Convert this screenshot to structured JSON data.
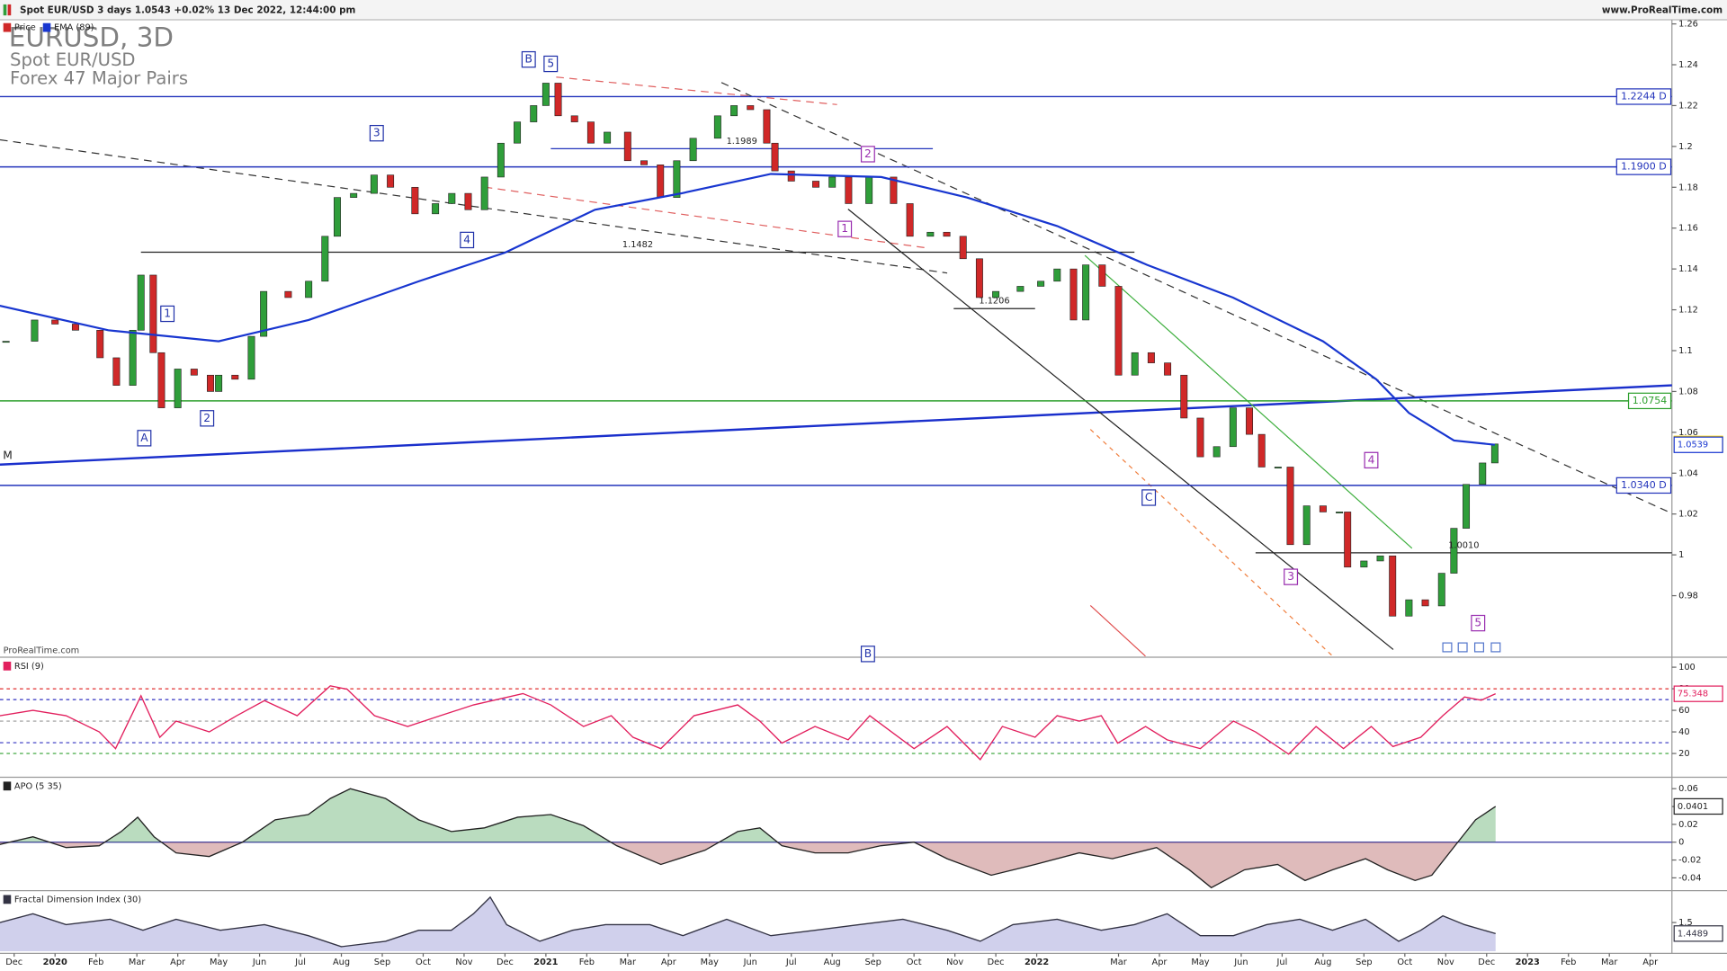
{
  "chart_data": [
    {
      "type": "candlestick",
      "header": "Spot EUR/USD 3 days 1.0543 +0.02% 13 Dec 2022, 12:44:00 pm",
      "site": "www.ProRealTime.com",
      "title": "EURUSD, 3D",
      "subtitle": "Spot EUR/USD",
      "market": "Forex 47 Major Pairs",
      "watermark": "ProRealTime.com",
      "xlim": [
        -1.346,
        39.53
      ],
      "ylim": [
        0.9504,
        1.262
      ],
      "yticks": [
        0.98,
        1,
        1.02,
        1.04,
        1.06,
        1.08,
        1.1,
        1.12,
        1.14,
        1.16,
        1.18,
        1.2,
        1.22,
        1.24,
        1.26
      ],
      "series": [
        {
          "name": "Price",
          "type": "candlestick",
          "up_color": "#2f9e3a",
          "down_color": "#d02828",
          "color": "#d02828",
          "label_fill": "#ffd400",
          "last_label": "1.0543",
          "x": [
            -1.2,
            -0.5,
            0,
            0.5,
            1.1,
            1.5,
            1.9,
            2.1,
            2.4,
            2.6,
            3.0,
            3.4,
            3.8,
            4.0,
            4.4,
            4.8,
            5.1,
            5.7,
            6.2,
            6.6,
            6.9,
            7.3,
            7.8,
            8.2,
            8.8,
            9.3,
            9.7,
            10.1,
            10.5,
            10.9,
            11.3,
            11.7,
            12.0,
            12.3,
            12.7,
            13.1,
            13.5,
            14.0,
            14.4,
            14.8,
            15.2,
            15.6,
            16.2,
            16.6,
            17.0,
            17.4,
            17.6,
            18.0,
            18.6,
            19.0,
            19.4,
            19.9,
            20.5,
            20.9,
            21.4,
            21.8,
            22.2,
            22.6,
            23.0,
            23.6,
            24.1,
            24.5,
            24.9,
            25.2,
            25.6,
            26.0,
            26.4,
            26.8,
            27.2,
            27.6,
            28.0,
            28.4,
            28.8,
            29.2,
            29.5,
            29.9,
            30.2,
            30.6,
            31.0,
            31.4,
            31.6,
            32.0,
            32.4,
            32.7,
            33.1,
            33.5,
            33.9,
            34.2,
            34.5,
            34.9,
            35.2
          ],
          "values": [
            1.1046,
            1.115,
            1.113,
            1.11,
            1.0965,
            1.083,
            1.11,
            1.137,
            1.099,
            1.072,
            1.091,
            1.088,
            1.08,
            1.088,
            1.086,
            1.107,
            1.129,
            1.126,
            1.134,
            1.156,
            1.175,
            1.177,
            1.186,
            1.18,
            1.167,
            1.172,
            1.177,
            1.169,
            1.185,
            1.2016,
            1.212,
            1.22,
            1.231,
            1.215,
            1.212,
            1.2016,
            1.207,
            1.193,
            1.191,
            1.175,
            1.193,
            1.204,
            1.215,
            1.22,
            1.218,
            1.2016,
            1.188,
            1.183,
            1.18,
            1.185,
            1.172,
            1.185,
            1.172,
            1.156,
            1.158,
            1.156,
            1.145,
            1.126,
            1.129,
            1.1315,
            1.134,
            1.14,
            1.115,
            1.142,
            1.1315,
            1.088,
            1.099,
            1.094,
            1.088,
            1.067,
            1.048,
            1.053,
            1.072,
            1.059,
            1.043,
            1.043,
            1.005,
            1.024,
            1.021,
            1.021,
            0.994,
            0.997,
            0.9995,
            0.97,
            0.978,
            0.975,
            0.991,
            1.013,
            1.0345,
            1.045,
            1.0543
          ]
        },
        {
          "name": "EMA (89)",
          "type": "line",
          "color": "#1836d0",
          "last_label": "1.0539",
          "x": [
            -1.35,
            1.3,
            4.0,
            6.2,
            8.9,
            11.0,
            13.2,
            15.3,
            17.5,
            20.2,
            22.3,
            24.5,
            26.7,
            28.8,
            31.0,
            32.3,
            33.1,
            34.2,
            35.2
          ],
          "values": [
            1.122,
            1.11,
            1.1046,
            1.115,
            1.134,
            1.148,
            1.169,
            1.177,
            1.1865,
            1.185,
            1.175,
            1.161,
            1.142,
            1.126,
            1.1046,
            1.086,
            1.0695,
            1.056,
            1.0539
          ]
        }
      ],
      "levels": [
        {
          "value": 1.2244,
          "label": "1.2244 D",
          "color": "#2233bb"
        },
        {
          "value": 1.19,
          "label": "1.1900 D",
          "color": "#2233bb"
        },
        {
          "value": 1.0754,
          "label": "1.0754",
          "color": "#2ea02e"
        },
        {
          "value": 1.034,
          "label": "1.0340 D",
          "color": "#2233bb"
        }
      ],
      "segments": [
        {
          "value": 1.1482,
          "label": "1.1482",
          "x": [
            2.1,
            26.39
          ],
          "color": "#222222"
        },
        {
          "value": 1.1989,
          "label": "1.1989",
          "x": [
            12.12,
            21.46
          ],
          "color": "#2233bb"
        },
        {
          "value": 1.1206,
          "label": "1.1206",
          "x": [
            21.97,
            23.96
          ],
          "color": "#222222"
        },
        {
          "value": 1.001,
          "label": "1.0010",
          "x": [
            29.35,
            39.53
          ],
          "color": "#222222"
        }
      ],
      "annotations": [
        {
          "text": "A",
          "color": "#2233aa"
        },
        {
          "text": "1",
          "color": "#2233aa"
        },
        {
          "text": "2",
          "color": "#2233aa"
        },
        {
          "text": "3",
          "color": "#2233aa"
        },
        {
          "text": "4",
          "color": "#2233aa"
        },
        {
          "text": "B",
          "color": "#2233aa"
        },
        {
          "text": "5",
          "color": "#2233aa"
        },
        {
          "text": "C",
          "color": "#2233aa"
        },
        {
          "text": "1",
          "color": "#9a2fb0"
        },
        {
          "text": "2",
          "color": "#9a2fb0"
        },
        {
          "text": "3",
          "color": "#9a2fb0"
        },
        {
          "text": "4",
          "color": "#9a2fb0"
        },
        {
          "text": "5",
          "color": "#9a2fb0"
        },
        {
          "text": "B",
          "color": "#2233aa"
        },
        {
          "text": "M",
          "color": "#222222"
        }
      ]
    },
    {
      "type": "line",
      "xlim": [
        -1.346,
        39.53
      ],
      "ylim": [
        -1,
        108.2
      ],
      "yticks": [
        20,
        40,
        60,
        80,
        100
      ],
      "ref_lines": [
        {
          "value": 80,
          "color": "#e03030",
          "dash": true
        },
        {
          "value": 70,
          "color": "#3030c0",
          "dash": true
        },
        {
          "value": 50,
          "color": "#999999",
          "dash": true
        },
        {
          "value": 30,
          "color": "#3030c0",
          "dash": true
        },
        {
          "value": 20,
          "color": "#30a030",
          "dash": true
        }
      ],
      "series": [
        {
          "name": "RSI (9)",
          "type": "line",
          "color": "#e2205e",
          "last_label": "75.348",
          "x": [
            -1.35,
            -0.54,
            0.27,
            1.08,
            1.48,
            2.1,
            2.56,
            2.96,
            3.77,
            4.44,
            5.12,
            5.92,
            6.73,
            7.14,
            7.81,
            8.62,
            9.42,
            10.23,
            11.44,
            12.12,
            12.92,
            13.6,
            14.13,
            14.81,
            15.62,
            16.69,
            17.23,
            17.77,
            18.58,
            19.39,
            19.92,
            21.0,
            21.81,
            22.62,
            23.16,
            23.96,
            24.5,
            25.04,
            25.58,
            25.98,
            26.66,
            27.19,
            28.0,
            28.81,
            29.35,
            30.16,
            30.83,
            31.5,
            32.18,
            32.71,
            33.39,
            33.93,
            34.46,
            34.87,
            35.22
          ],
          "values": [
            55,
            60,
            55,
            40,
            24.5,
            73.5,
            35,
            50,
            40,
            55,
            69,
            55,
            82.7,
            79.6,
            55,
            45,
            55,
            65,
            75.5,
            65,
            45,
            55,
            35,
            24.5,
            55,
            65,
            50,
            29.6,
            45,
            32.7,
            55,
            24.5,
            45,
            14.3,
            45,
            35,
            55,
            50,
            55,
            29.6,
            45,
            32.7,
            24.5,
            50,
            40,
            19.4,
            45,
            24.5,
            45,
            26.5,
            35,
            55,
            72.4,
            69.4,
            75.348
          ]
        }
      ]
    },
    {
      "type": "area",
      "xlim": [
        -1.346,
        39.53
      ],
      "ylim": [
        -0.0531,
        0.0716
      ],
      "yticks": [
        -0.04,
        -0.02,
        0,
        0.02,
        0.04,
        0.06
      ],
      "ref_lines": [
        {
          "value": 0,
          "color": "#3030a0",
          "dash": false
        }
      ],
      "series": [
        {
          "name": "APO (5 35)",
          "type": "area",
          "color": "#222222",
          "fill_colors": [
            "#3a9a48",
            "#a23c3c"
          ],
          "last_label": "0.0401",
          "x": [
            -1.35,
            -0.54,
            0.27,
            1.08,
            1.62,
            2.02,
            2.42,
            2.96,
            3.77,
            4.58,
            5.38,
            6.19,
            6.73,
            7.22,
            8.08,
            8.89,
            9.69,
            10.5,
            11.31,
            12.12,
            12.92,
            13.73,
            14.81,
            15.89,
            16.69,
            17.23,
            17.77,
            18.58,
            19.39,
            20.19,
            21.0,
            21.81,
            22.89,
            23.96,
            25.04,
            25.85,
            26.93,
            27.73,
            28.27,
            29.08,
            29.89,
            30.56,
            31.23,
            32.04,
            32.58,
            33.25,
            33.66,
            34.19,
            34.73,
            35.22
          ],
          "values": [
            -0.0025,
            0.006,
            -0.006,
            -0.004,
            0.012,
            0.028,
            0.006,
            -0.012,
            -0.016,
            0,
            0.025,
            0.031,
            0.049,
            0.06,
            0.049,
            0.025,
            0.012,
            0.016,
            0.028,
            0.031,
            0.0185,
            -0.004,
            -0.025,
            -0.009,
            0.012,
            0.016,
            -0.004,
            -0.012,
            -0.012,
            -0.004,
            0,
            -0.0185,
            -0.037,
            -0.025,
            -0.012,
            -0.0185,
            -0.006,
            -0.031,
            -0.051,
            -0.031,
            -0.025,
            -0.043,
            -0.031,
            -0.0185,
            -0.031,
            -0.043,
            -0.037,
            -0.006,
            0.025,
            0.0401
          ]
        }
      ]
    },
    {
      "type": "area",
      "xlim": [
        -1.346,
        39.53
      ],
      "ylim": [
        1.367,
        1.643
      ],
      "yticks": [
        1.5
      ],
      "xticks": [
        {
          "value": -1,
          "label": "Dec"
        },
        {
          "value": 0,
          "label": "2020"
        },
        {
          "value": 1,
          "label": "Feb"
        },
        {
          "value": 2,
          "label": "Mar"
        },
        {
          "value": 3,
          "label": "Apr"
        },
        {
          "value": 4,
          "label": "May"
        },
        {
          "value": 5,
          "label": "Jun"
        },
        {
          "value": 6,
          "label": "Jul"
        },
        {
          "value": 7,
          "label": "Aug"
        },
        {
          "value": 8,
          "label": "Sep"
        },
        {
          "value": 9,
          "label": "Oct"
        },
        {
          "value": 10,
          "label": "Nov"
        },
        {
          "value": 11,
          "label": "Dec"
        },
        {
          "value": 12,
          "label": "2021"
        },
        {
          "value": 13,
          "label": "Feb"
        },
        {
          "value": 14,
          "label": "Mar"
        },
        {
          "value": 15,
          "label": "Apr"
        },
        {
          "value": 16,
          "label": "May"
        },
        {
          "value": 17,
          "label": "Jun"
        },
        {
          "value": 18,
          "label": "Jul"
        },
        {
          "value": 19,
          "label": "Aug"
        },
        {
          "value": 20,
          "label": "Sep"
        },
        {
          "value": 21,
          "label": "Oct"
        },
        {
          "value": 22,
          "label": "Nov"
        },
        {
          "value": 23,
          "label": "Dec"
        },
        {
          "value": 24,
          "label": "2022"
        },
        {
          "value": 26,
          "label": "Mar"
        },
        {
          "value": 27,
          "label": "Apr"
        },
        {
          "value": 28,
          "label": "May"
        },
        {
          "value": 29,
          "label": "Jun"
        },
        {
          "value": 30,
          "label": "Jul"
        },
        {
          "value": 31,
          "label": "Aug"
        },
        {
          "value": 32,
          "label": "Sep"
        },
        {
          "value": 33,
          "label": "Oct"
        },
        {
          "value": 34,
          "label": "Nov"
        },
        {
          "value": 35,
          "label": "Dec"
        },
        {
          "value": 36,
          "label": "2023"
        },
        {
          "value": 37,
          "label": "Feb"
        },
        {
          "value": 38,
          "label": "Mar"
        },
        {
          "value": 39,
          "label": "Apr"
        }
      ],
      "series": [
        {
          "name": "Fractal Dimension Index (30)",
          "type": "area",
          "color": "#333344",
          "fill_colors": [
            "#bcbce4"
          ],
          "last_label": "1.4489",
          "x": [
            -1.35,
            -0.54,
            0.27,
            1.35,
            2.15,
            2.96,
            4.04,
            5.12,
            6.19,
            7.0,
            8.08,
            8.89,
            9.69,
            10.23,
            10.64,
            11.04,
            11.85,
            12.65,
            13.46,
            14.54,
            15.35,
            16.42,
            17.5,
            18.58,
            19.66,
            20.73,
            21.81,
            22.62,
            23.42,
            24.5,
            25.58,
            26.39,
            27.19,
            28.0,
            28.81,
            29.62,
            30.43,
            31.23,
            32.04,
            32.85,
            33.39,
            33.93,
            34.46,
            35.22
          ],
          "values": [
            1.5,
            1.541,
            1.49,
            1.515,
            1.464,
            1.515,
            1.464,
            1.49,
            1.439,
            1.388,
            1.413,
            1.464,
            1.464,
            1.541,
            1.618,
            1.49,
            1.413,
            1.464,
            1.49,
            1.49,
            1.439,
            1.515,
            1.439,
            1.464,
            1.49,
            1.515,
            1.464,
            1.413,
            1.49,
            1.515,
            1.464,
            1.49,
            1.541,
            1.439,
            1.439,
            1.49,
            1.515,
            1.464,
            1.515,
            1.413,
            1.464,
            1.531,
            1.49,
            1.4489
          ]
        }
      ]
    }
  ]
}
